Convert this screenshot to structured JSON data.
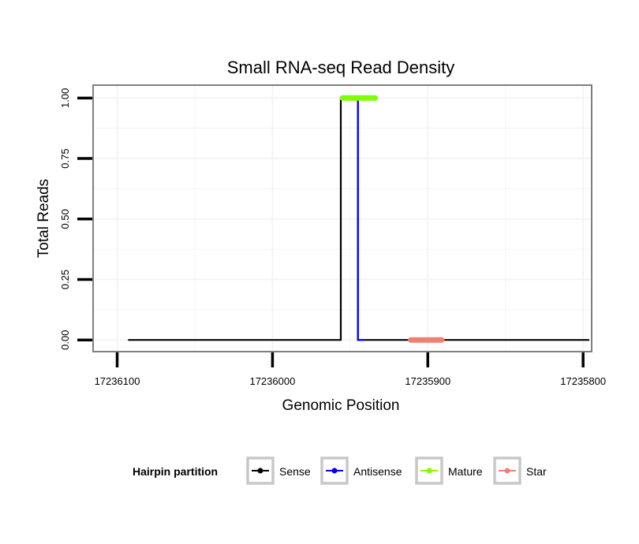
{
  "chart_data": {
    "type": "line",
    "title": "Small RNA-seq Read Density",
    "xlabel": "Genomic Position",
    "ylabel": "Total Reads",
    "x_reversed": true,
    "xlim": [
      17236115,
      17235795
    ],
    "ylim": [
      -0.045,
      1.05
    ],
    "x_ticks": [
      17236100,
      17236000,
      17235900,
      17235800
    ],
    "x_tick_labels": [
      "17236100",
      "17236000",
      "17235900",
      "17235800"
    ],
    "y_ticks": [
      0,
      0.25,
      0.5,
      0.75,
      1.0
    ],
    "y_tick_labels": [
      "0.00",
      "0.25",
      "0.50",
      "0.75",
      "1.00"
    ],
    "legend": {
      "title": "Hairpin partition",
      "position": "bottom",
      "entries": [
        "Sense",
        "Antisense",
        "Mature",
        "Star"
      ]
    },
    "series": [
      {
        "name": "Sense",
        "color": "#000000",
        "width": "thin",
        "x": [
          17236093,
          17235956,
          17235956,
          17235945,
          17235945,
          17235796
        ],
        "y": [
          0,
          0,
          1,
          1,
          0,
          0
        ]
      },
      {
        "name": "Antisense",
        "color": "#0000ff",
        "width": "thin",
        "x": [
          17235947,
          17235945,
          17235945,
          17235941
        ],
        "y": [
          1,
          1,
          0,
          0
        ]
      },
      {
        "name": "Mature",
        "color": "#7fff00",
        "width": "thick",
        "x": [
          17235955,
          17235934
        ],
        "y": [
          1,
          1
        ]
      },
      {
        "name": "Star",
        "color": "#f08070",
        "width": "thick",
        "x": [
          17235911,
          17235891
        ],
        "y": [
          0,
          0
        ]
      }
    ]
  }
}
